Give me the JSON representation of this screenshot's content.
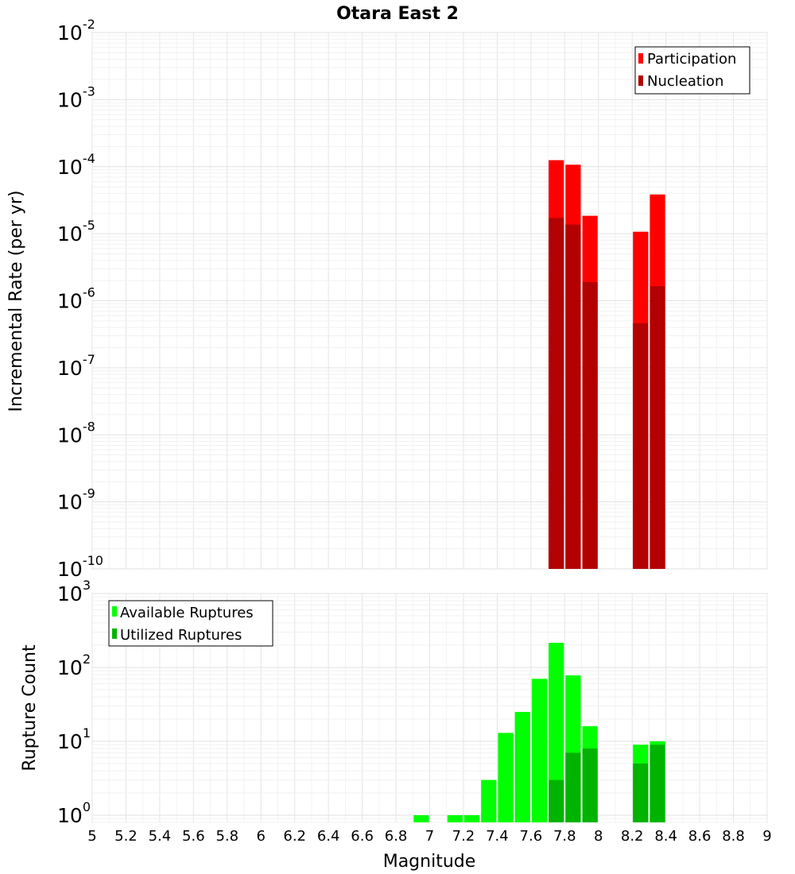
{
  "chart_data": [
    {
      "type": "bar",
      "title": "Otara East 2",
      "ylabel": "Incremental Rate (per yr)",
      "xlabel": "",
      "x_range": [
        5,
        9
      ],
      "y_scale": "log",
      "y_range": [
        1e-10,
        0.01
      ],
      "y_ticks": [
        "10^-10",
        "10^-9",
        "10^-8",
        "10^-7",
        "10^-6",
        "10^-5",
        "10^-4",
        "10^-3",
        "10^-2"
      ],
      "grid": true,
      "legend_position": "top-right",
      "bar_width": 0.1,
      "series": [
        {
          "name": "Participation",
          "color": "#ff0000",
          "x": [
            7.75,
            7.85,
            7.95,
            8.25,
            8.35
          ],
          "values": [
            0.000125,
            0.000107,
            1.85e-05,
            1.07e-05,
            3.85e-05
          ]
        },
        {
          "name": "Nucleation",
          "color": "#b30000",
          "x": [
            7.75,
            7.85,
            7.95,
            8.25,
            8.35
          ],
          "values": [
            1.72e-05,
            1.37e-05,
            1.9e-06,
            4.6e-07,
            1.65e-06
          ]
        }
      ]
    },
    {
      "type": "bar",
      "title": "",
      "ylabel": "Rupture Count",
      "xlabel": "Magnitude",
      "x_range": [
        5,
        9
      ],
      "x_ticks": [
        "5",
        "5.2",
        "5.4",
        "5.6",
        "5.8",
        "6",
        "6.2",
        "6.4",
        "6.6",
        "6.8",
        "7",
        "7.2",
        "7.4",
        "7.6",
        "7.8",
        "8",
        "8.2",
        "8.4",
        "8.6",
        "8.8",
        "9"
      ],
      "y_scale": "log",
      "y_range": [
        0.8,
        1000
      ],
      "y_ticks": [
        "10^0",
        "10^1",
        "10^2",
        "10^3"
      ],
      "grid": true,
      "legend_position": "top-left",
      "bar_width": 0.1,
      "series": [
        {
          "name": "Available Ruptures",
          "color": "#00ff00",
          "x": [
            6.95,
            7.15,
            7.25,
            7.35,
            7.45,
            7.55,
            7.65,
            7.75,
            7.85,
            7.95,
            8.25,
            8.35
          ],
          "values": [
            1,
            1,
            1,
            3,
            13,
            25,
            70,
            215,
            78,
            16,
            9,
            10
          ]
        },
        {
          "name": "Utilized Ruptures",
          "color": "#00b300",
          "x": [
            7.75,
            7.85,
            7.95,
            8.25,
            8.35
          ],
          "values": [
            3,
            7,
            8,
            5,
            9
          ]
        }
      ]
    }
  ]
}
